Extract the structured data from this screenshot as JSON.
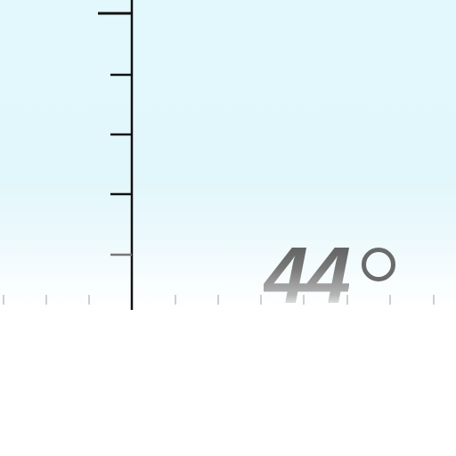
{
  "inclinometer": {
    "angle_value": "44",
    "angle_unit_icon": "degree-icon",
    "colors": {
      "sky": "#e2f7fb",
      "ground": "#ffffff",
      "scale_major": "#111111",
      "scale_minor": "#cccccc",
      "readout": "#6a6a6a"
    }
  }
}
